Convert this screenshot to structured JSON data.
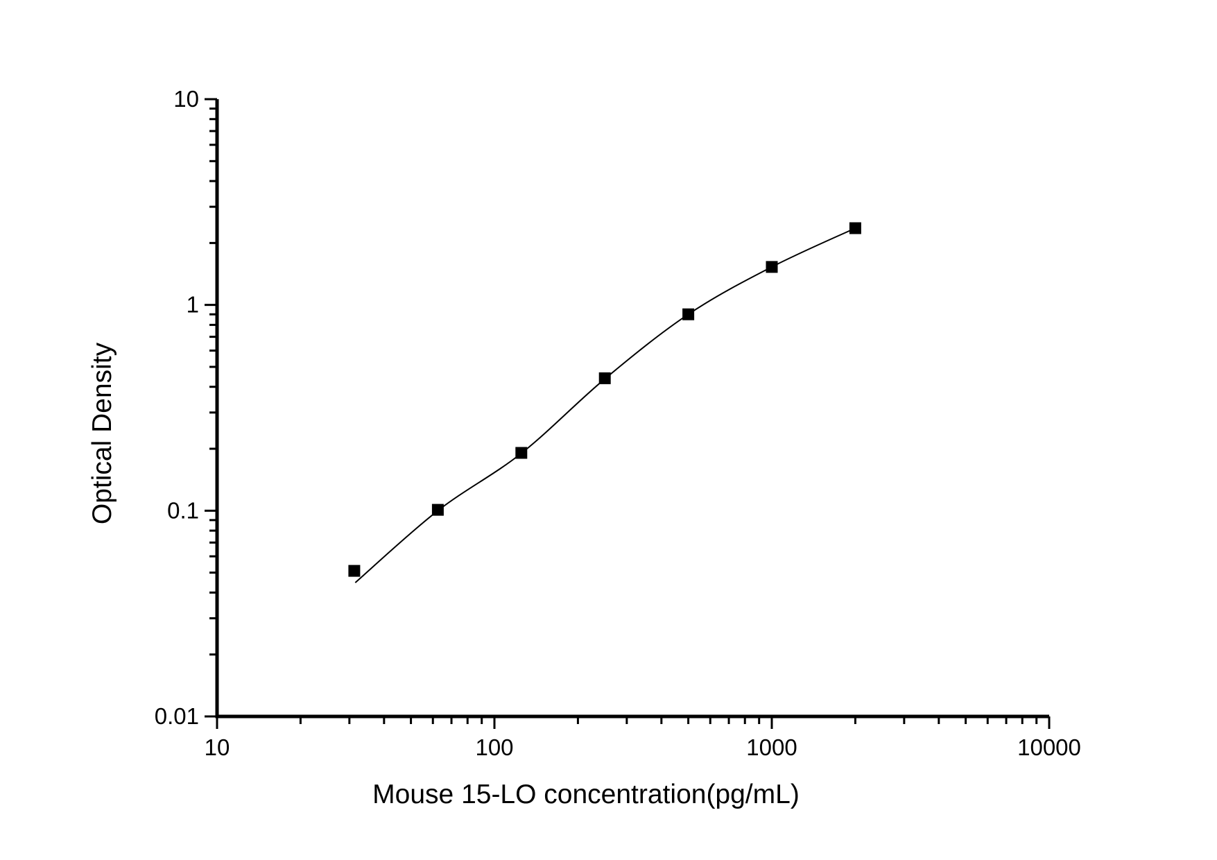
{
  "figure": {
    "background": "#ffffff"
  },
  "chart_data": {
    "type": "scatter",
    "title": "",
    "xlabel": "Mouse 15-LO concentration(pg/mL)",
    "ylabel": "Optical Density",
    "x_scale": "log",
    "y_scale": "log",
    "xlim": [
      10,
      10000
    ],
    "ylim": [
      0.01,
      10
    ],
    "grid": false,
    "legend": "none",
    "x_major_ticks": [
      10,
      100,
      1000,
      10000
    ],
    "x_tick_labels": [
      "10",
      "100",
      "1000",
      "10000"
    ],
    "y_major_ticks": [
      10,
      1,
      0.1,
      0.01
    ],
    "y_tick_labels": [
      "10",
      "1",
      "0.1",
      "0.01"
    ],
    "series": [
      {
        "name": "standard-curve-points",
        "marker": "filled-square",
        "points": [
          {
            "x": 31.25,
            "y": 0.051
          },
          {
            "x": 62.5,
            "y": 0.101
          },
          {
            "x": 125,
            "y": 0.191
          },
          {
            "x": 250,
            "y": 0.44
          },
          {
            "x": 500,
            "y": 0.9
          },
          {
            "x": 1000,
            "y": 1.53
          },
          {
            "x": 2000,
            "y": 2.36
          }
        ]
      }
    ],
    "fit_curve": [
      [
        31.5,
        0.0447
      ],
      [
        62.5,
        0.1
      ],
      [
        125,
        0.19
      ],
      [
        250,
        0.437
      ],
      [
        500,
        0.9
      ],
      [
        1000,
        1.53
      ],
      [
        2000,
        2.36
      ]
    ],
    "colors": {
      "axis": "#000000",
      "marker": "#000000",
      "curve": "#000000",
      "background": "#ffffff"
    }
  }
}
